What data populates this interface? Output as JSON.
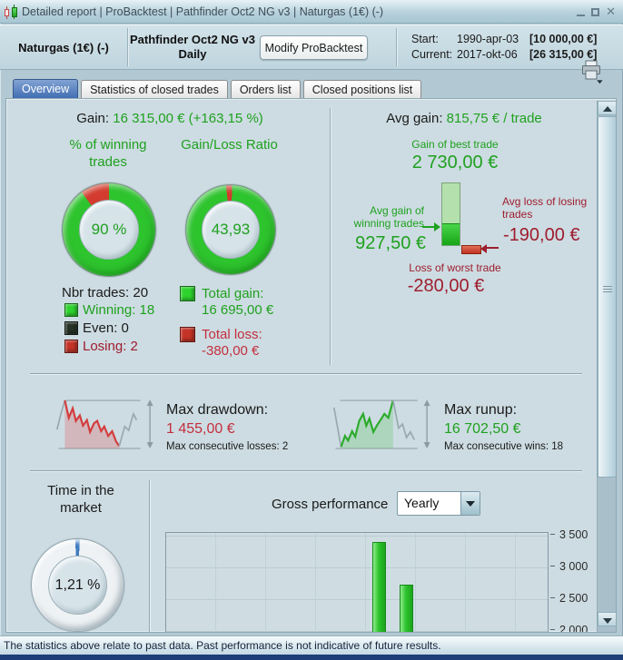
{
  "window": {
    "title": "Detailed report | ProBacktest | Pathfinder Oct2 NG v3 | Naturgas (1€) (-)"
  },
  "header": {
    "instrument": "Naturgas (1€) (-)",
    "system_name": "Pathfinder Oct2 NG v3",
    "timeframe": "Daily",
    "modify_button": "Modify ProBacktest",
    "start_label": "Start:",
    "start_date": "1990-apr-03",
    "start_capital": "[10 000,00 €]",
    "current_label": "Current:",
    "current_date": "2017-okt-06",
    "current_capital": "[26 315,00 €]"
  },
  "tabs": [
    {
      "label": "Overview",
      "active": true
    },
    {
      "label": "Statistics of closed trades",
      "active": false
    },
    {
      "label": "Orders list",
      "active": false
    },
    {
      "label": "Closed positions list",
      "active": false
    }
  ],
  "overview": {
    "gain_label": "Gain:",
    "gain_value": "16 315,00 € (+163,15 %)",
    "winning_donut": {
      "title": "% of winning trades",
      "value": "90 %",
      "percent_num": 90
    },
    "ratio_donut": {
      "title": "Gain/Loss Ratio",
      "value": "43,93",
      "value_num": 43.93
    },
    "nbr_trades": "Nbr trades: 20",
    "legend": [
      {
        "label": "Winning: 18"
      },
      {
        "label": "Even: 0"
      },
      {
        "label": "Losing: 2"
      }
    ],
    "total_gain": {
      "label": "Total gain:",
      "value": "16 695,00 €"
    },
    "total_loss": {
      "label": "Total loss:",
      "value": "-380,00 €"
    },
    "avg_gain_label": "Avg gain:",
    "avg_gain_value": "815,75 € / trade",
    "best_trade": {
      "label": "Gain of best trade",
      "value": "2 730,00 €"
    },
    "avg_win": {
      "label": "Avg gain of winning trades",
      "value": "927,50 €"
    },
    "avg_loss": {
      "label": "Avg loss of losing trades",
      "value": "-190,00 €"
    },
    "worst_trade": {
      "label": "Loss of worst trade",
      "value": "-280,00 €"
    },
    "drawdown": {
      "label": "Max drawdown:",
      "value": "1 455,00 €",
      "consecutive": "Max consecutive losses: 2"
    },
    "runup": {
      "label": "Max runup:",
      "value": "16 702,50 €",
      "consecutive": "Max consecutive wins: 18"
    },
    "time_in_market": {
      "title": "Time in the market",
      "value": "1,21 %",
      "percent_num": 1.21
    },
    "gross_performance": {
      "label": "Gross performance",
      "period": "Yearly"
    }
  },
  "chart_data": {
    "type": "bar",
    "title": "Gross performance",
    "period": "Yearly",
    "values": [
      3400,
      2730
    ],
    "ylim": [
      2000,
      3500
    ],
    "y_tick_labels": [
      "3 500",
      "3 000",
      "2 500",
      "2 000"
    ],
    "legend_position": "none",
    "grid": true
  },
  "status_bar": "The statistics above relate to past data. Past performance is not indicative of future results.",
  "colors": {
    "green_text": "#1fa11f",
    "donut_green": "#2ec42e",
    "donut_red": "#d23b2e",
    "legend_winning": "#2ed32e",
    "legend_even": "#263226",
    "legend_losing": "#c43327",
    "gauge_blue": "#3f7cc0",
    "tab_active": "#3e6cb2",
    "footer_navy": "#1d3e78"
  }
}
